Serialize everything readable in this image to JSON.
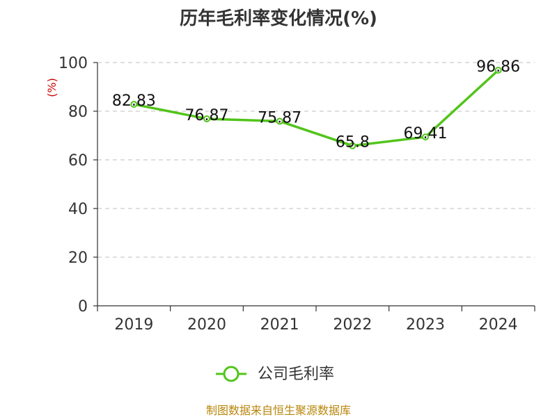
{
  "chart_data": {
    "type": "line",
    "title": "历年毛利率变化情况(%)",
    "ylabel": "(%)",
    "xlabel": "",
    "categories": [
      "2019",
      "2020",
      "2021",
      "2022",
      "2023",
      "2024"
    ],
    "series": [
      {
        "name": "公司毛利率",
        "values": [
          82.83,
          76.87,
          75.87,
          65.8,
          69.41,
          96.86
        ],
        "color": "#52c41a"
      }
    ],
    "ylim": [
      0,
      100
    ],
    "yticks": [
      "0",
      "20",
      "40",
      "60",
      "80",
      "100"
    ],
    "grid": true,
    "legend": "bottom-center"
  },
  "source_text": "制图数据来自恒生聚源数据库"
}
